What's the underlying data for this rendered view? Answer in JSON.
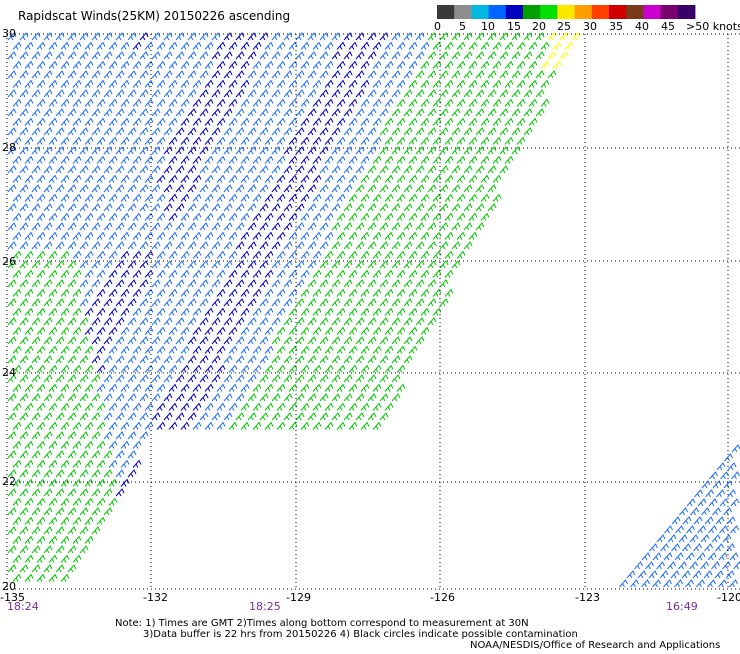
{
  "title": "Rapidscat Winds(25KM)  20150226  ascending",
  "legend": {
    "colors": [
      "#3a3a3a",
      "#8e8e8e",
      "#00b8e0",
      "#0066ff",
      "#0000c0",
      "#00a000",
      "#00e000",
      "#ffe800",
      "#ff9c00",
      "#ff4000",
      "#d00000",
      "#7a3a1a",
      "#cc00cc",
      "#7a0070",
      "#3a006a"
    ],
    "tick_labels": [
      "0",
      "5",
      "10",
      "15",
      "20",
      "25",
      "30",
      "35",
      "40",
      "45",
      ">50 knots"
    ]
  },
  "axes": {
    "y_labels": [
      "30",
      "28",
      "26",
      "24",
      "22",
      "20"
    ],
    "x_labels": [
      "-135",
      "-132",
      "-129",
      "-126",
      "-123",
      "-120"
    ]
  },
  "times": [
    "18:24",
    "18:25",
    "16:49"
  ],
  "notes": [
    "Note: 1) Times are GMT 2)Times along bottom correspond to measurement at 30N",
    "3)Data buffer is 22 hrs from 20150226 4) Black circles indicate possible contamination",
    "NOAA/NESDIS/Office of Research and Applications"
  ],
  "colors": {
    "blue_light": "#1e6cff",
    "blue_dark": "#0000c8",
    "green": "#00c800",
    "yellow": "#ffff00",
    "time_label": "#7a2aa0"
  }
}
